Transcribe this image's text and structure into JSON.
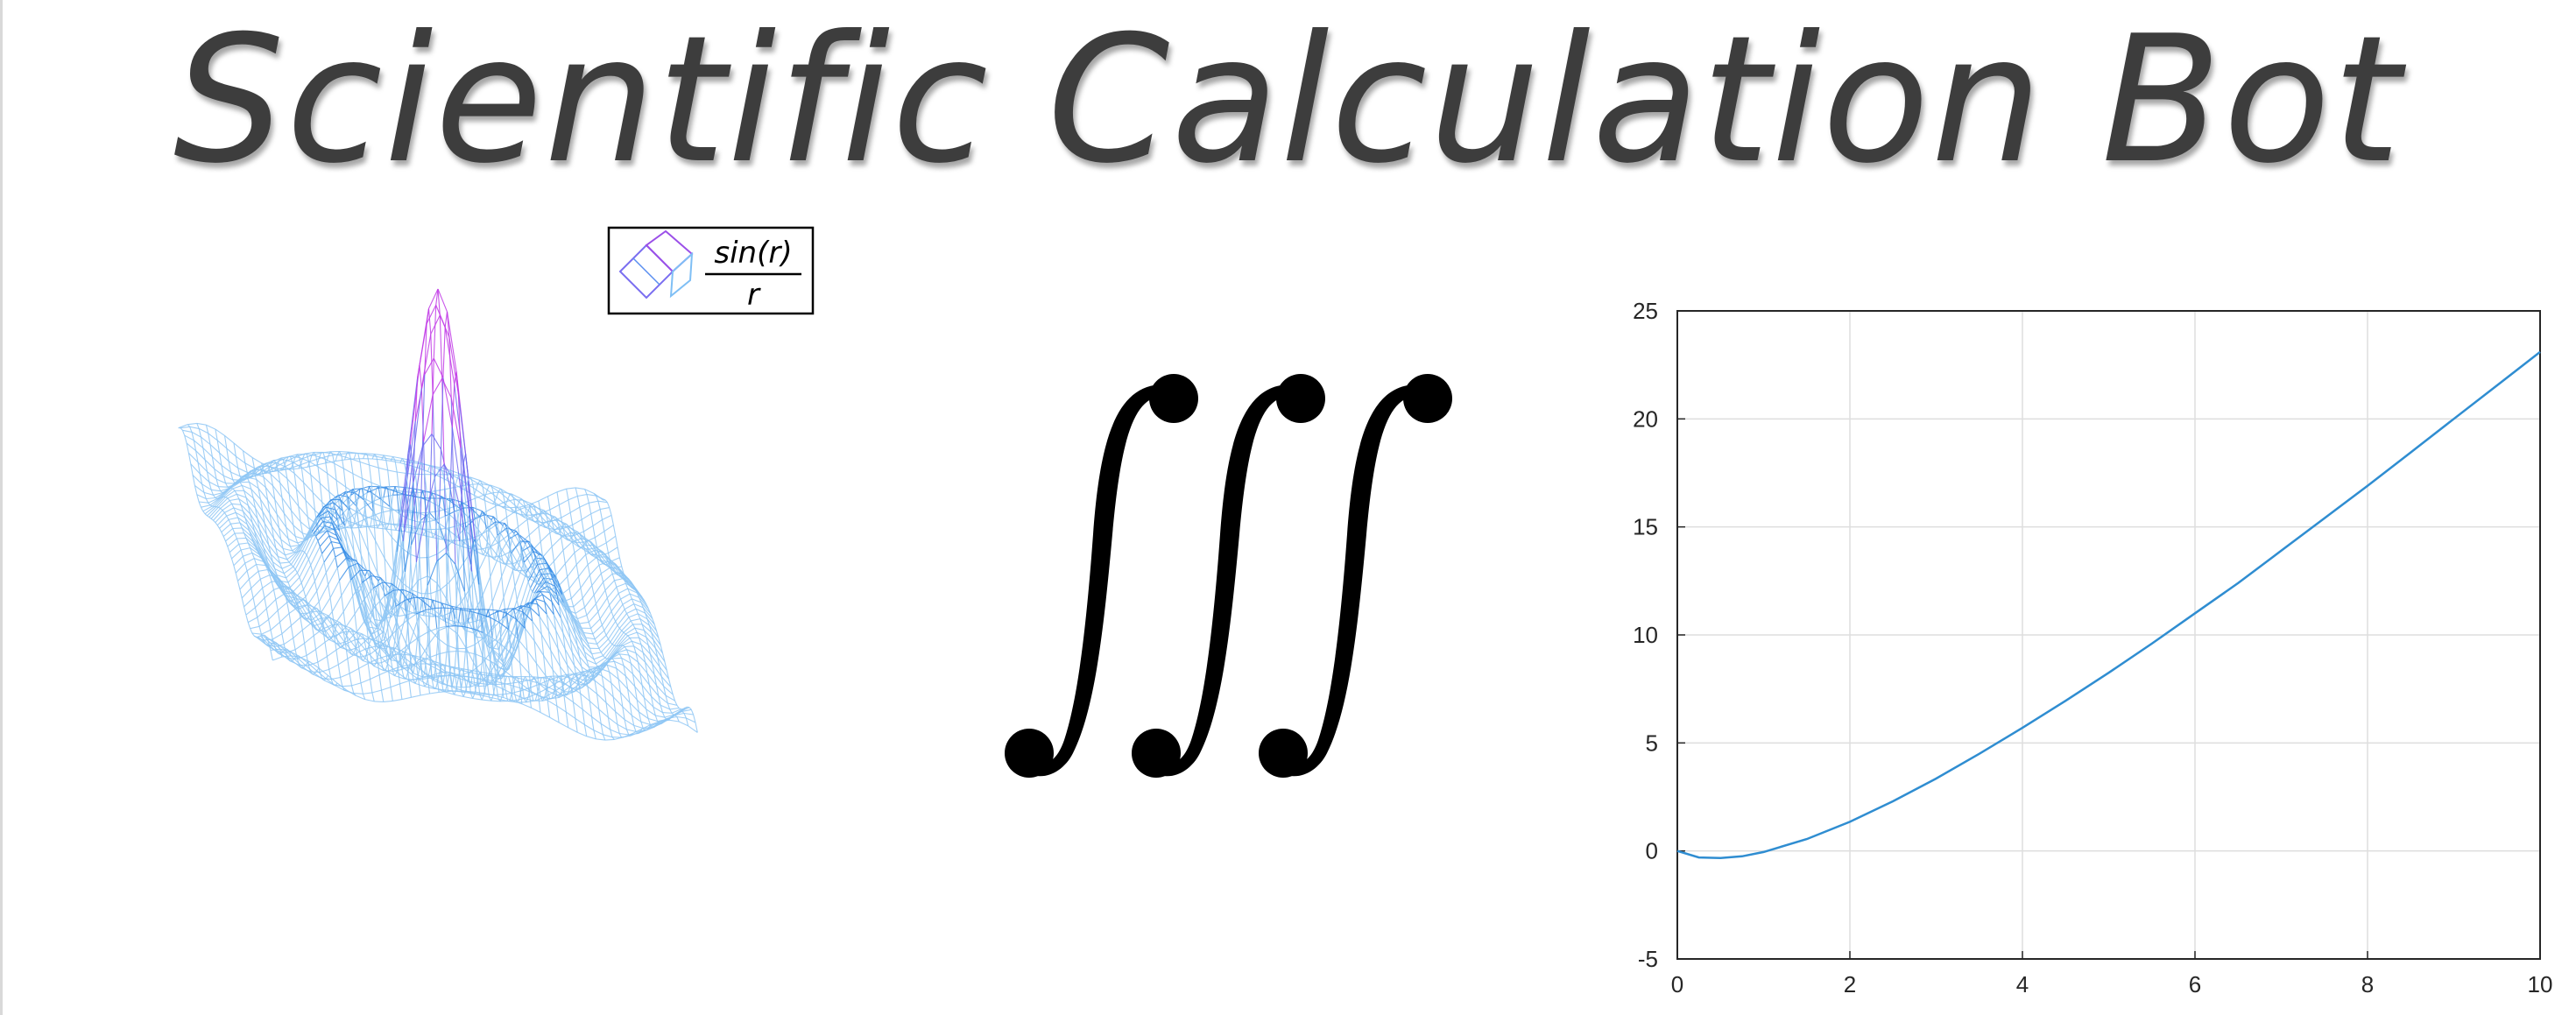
{
  "title": "Scientific Calculation Bot",
  "surface_legend": {
    "numerator": "sin(r)",
    "denominator": "r"
  },
  "integral_symbol": "∭",
  "colors": {
    "title": "#3d3d3d",
    "mesh_low": "#8fc7f5",
    "mesh_mid": "#3a8ee6",
    "mesh_peak": "#c13ae6",
    "line": "#2f8dd1",
    "grid": "#dedede"
  },
  "chart_data": {
    "type": "line",
    "title": "",
    "xlabel": "",
    "ylabel": "",
    "xlim": [
      0,
      10
    ],
    "ylim": [
      -5,
      25
    ],
    "xticks": [
      0,
      2,
      4,
      6,
      8,
      10
    ],
    "yticks": [
      -5,
      0,
      5,
      10,
      15,
      20,
      25
    ],
    "grid": true,
    "x": [
      0,
      0.25,
      0.5,
      0.75,
      1,
      1.5,
      2,
      2.5,
      3,
      3.5,
      4,
      4.5,
      5,
      5.5,
      6,
      6.5,
      7,
      7.5,
      8,
      8.5,
      9,
      9.5,
      10
    ],
    "y": [
      0,
      -0.3,
      -0.33,
      -0.25,
      -0.05,
      0.55,
      1.35,
      2.3,
      3.35,
      4.5,
      5.7,
      6.95,
      8.25,
      9.6,
      11.0,
      12.4,
      13.9,
      15.4,
      16.9,
      18.45,
      20.0,
      21.55,
      23.1
    ]
  }
}
